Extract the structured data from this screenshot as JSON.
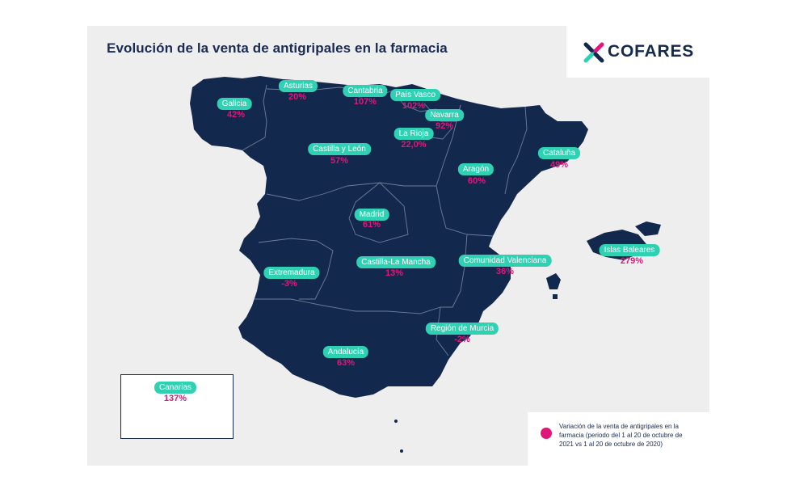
{
  "title": "Evolución de la venta de antigripales en la farmacia",
  "brand": {
    "name": "COFARES",
    "color": "#152a4f",
    "mark_colors": [
      "#e0177a",
      "#2fd1b3",
      "#152a4f"
    ]
  },
  "colors": {
    "land": "#13284d",
    "label_bg": "#2fd1b3",
    "value": "#e0177a",
    "panel": "#eeeeef"
  },
  "regions": [
    {
      "name": "Galicia",
      "value": "42%"
    },
    {
      "name": "Asturias",
      "value": "20%"
    },
    {
      "name": "Cantabria",
      "value": "107%"
    },
    {
      "name": "País Vasco",
      "value": "102%"
    },
    {
      "name": "Navarra",
      "value": "92%"
    },
    {
      "name": "La Rioja",
      "value": "22,0%"
    },
    {
      "name": "Castilla y León",
      "value": "57%"
    },
    {
      "name": "Cataluña",
      "value": "49%"
    },
    {
      "name": "Aragón",
      "value": "60%"
    },
    {
      "name": "Madrid",
      "value": "61%"
    },
    {
      "name": "Islas Baleares",
      "value": "279%"
    },
    {
      "name": "Extremadura",
      "value": "-3%"
    },
    {
      "name": "Castilla-La Mancha",
      "value": "13%"
    },
    {
      "name": "Comunidad Valenciana",
      "value": "36%"
    },
    {
      "name": "Región de Murcia",
      "value": "-2%"
    },
    {
      "name": "Andalucía",
      "value": "63%"
    },
    {
      "name": "Canarias",
      "value": "137%"
    }
  ],
  "legend": {
    "text": "Variación de la venta de antigripales en la farmacia (periodo del 1 al 20 de octubre de 2021 vs 1 al 20 de octubre de 2020)"
  }
}
